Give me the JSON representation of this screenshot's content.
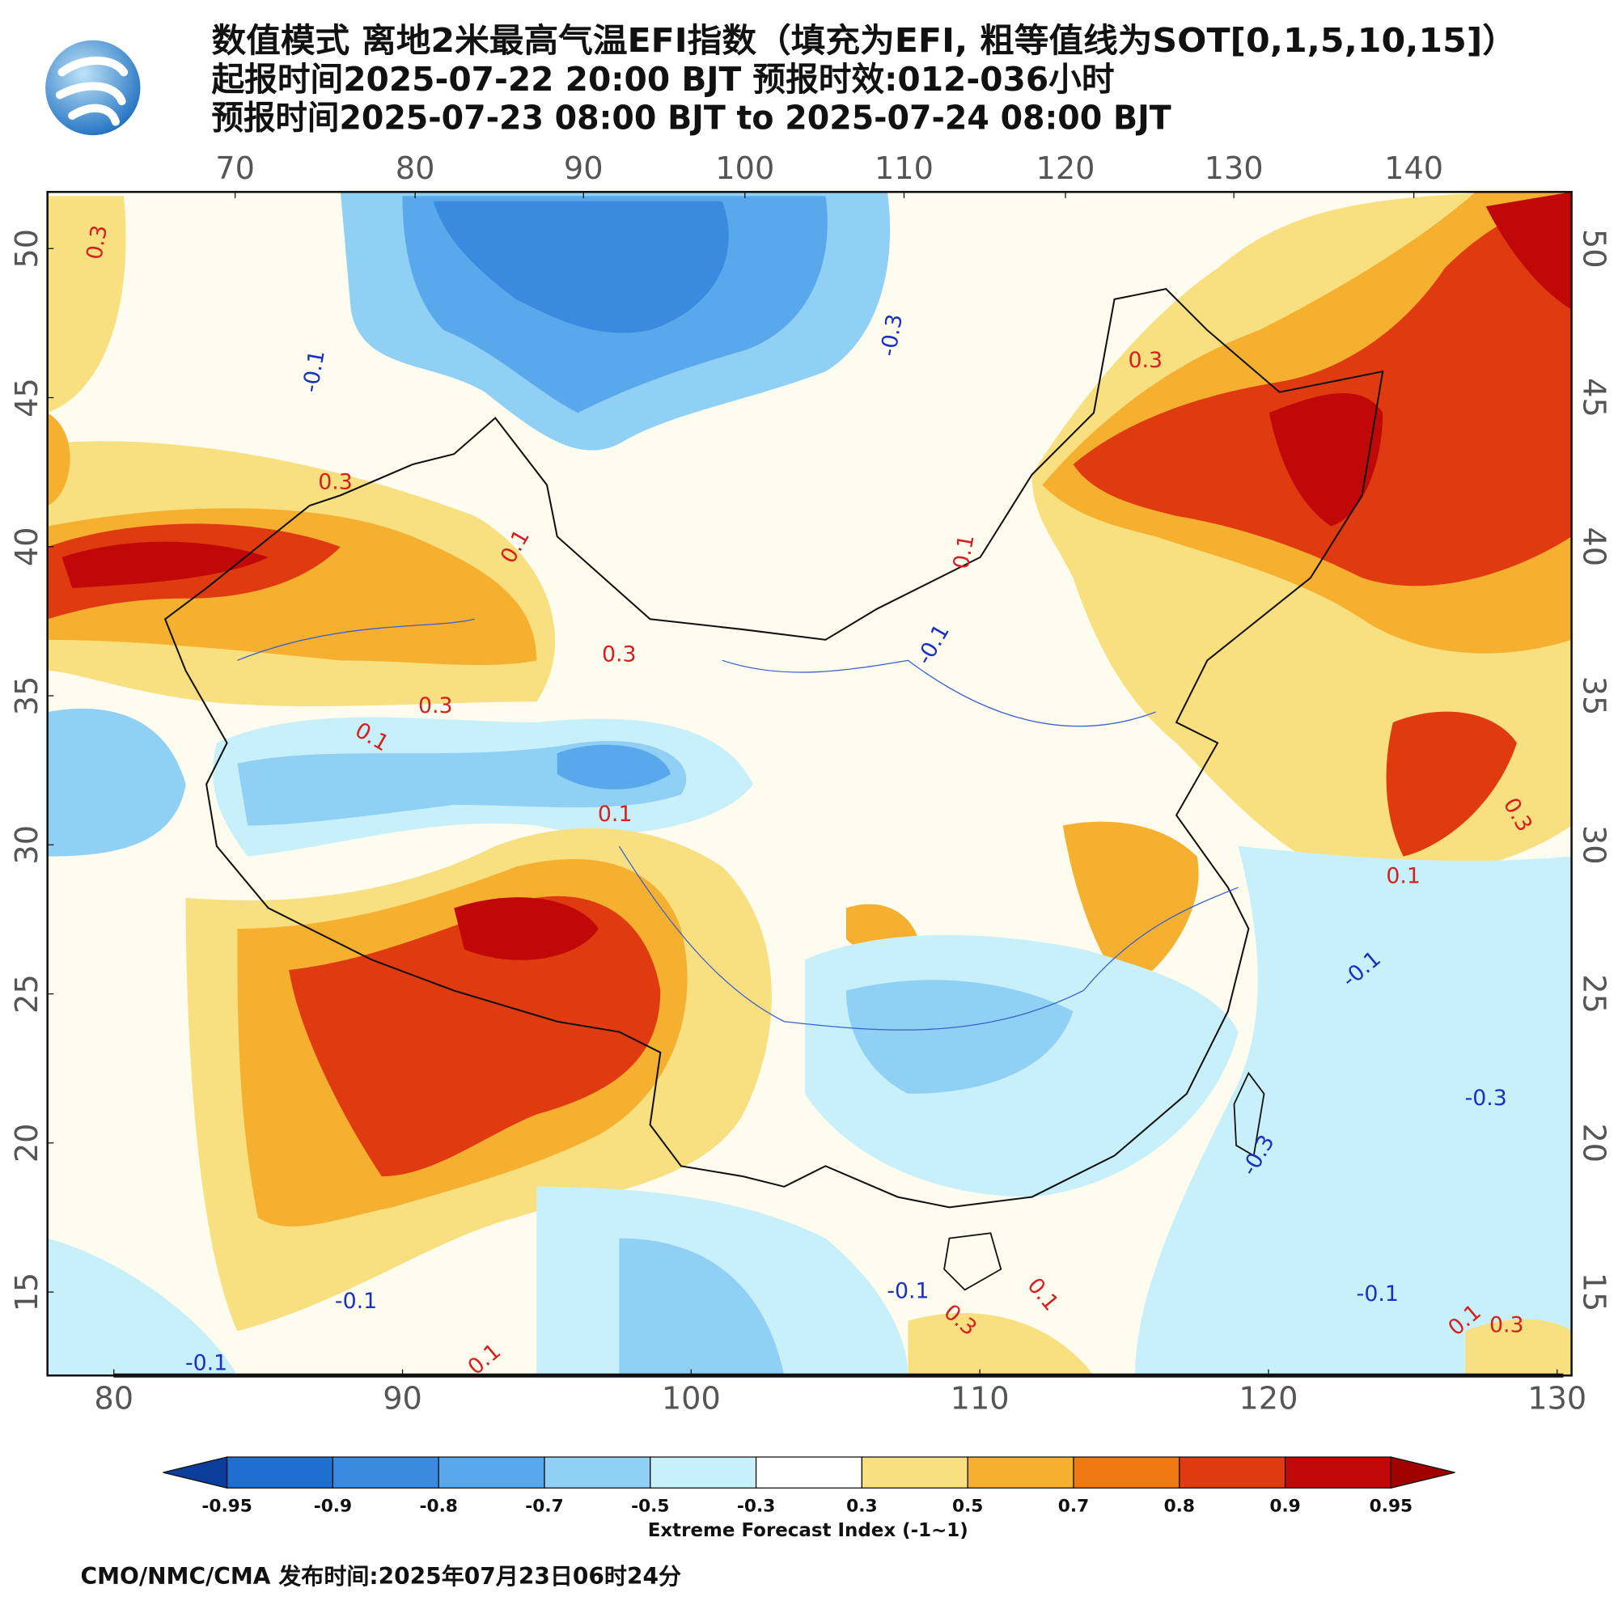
{
  "header": {
    "lines": [
      "数值模式 离地2米最高气温EFI指数（填充为EFI, 粗等值线为SOT[0,1,5,10,15]）",
      "起报时间2025-07-22 20:00 BJT 预报时效:012-036小时",
      "预报时间2025-07-23 08:00 BJT to 2025-07-24 08:00 BJT"
    ]
  },
  "map": {
    "top_lon_ticks": [
      70,
      80,
      90,
      100,
      110,
      120,
      130,
      140
    ],
    "bottom_lon_ticks": [
      80,
      90,
      100,
      110,
      120,
      130
    ],
    "xlim": [
      77.7,
      130.5
    ],
    "lat_ticks": [
      15,
      20,
      25,
      30,
      35,
      40,
      45,
      50
    ],
    "ylim": [
      12.2,
      51.9
    ],
    "contour_labels": [
      0.3,
      -0.1,
      -0.3,
      0.3,
      0.1,
      0.3,
      0.3,
      0.1,
      0.1,
      -0.1,
      0.1,
      -0.1,
      -0.3,
      -0.3,
      -0.1,
      -0.1,
      -0.1,
      0.1,
      -0.1,
      0.3,
      0.1,
      0.3,
      0.1,
      0.3,
      0.1,
      0.3
    ],
    "positive_color": "#d42020",
    "negative_color": "#1a30c0"
  },
  "colorbar": {
    "ticks": [
      -0.95,
      -0.9,
      -0.8,
      -0.7,
      -0.5,
      -0.3,
      0.3,
      0.5,
      0.7,
      0.8,
      0.9,
      0.95
    ],
    "colors": [
      "#0a3d9c",
      "#1f6fd0",
      "#3a8ae0",
      "#5aa8ec",
      "#8fd0f4",
      "#c8f0fa",
      "#ffffff",
      "#f8e080",
      "#f5b030",
      "#f07a10",
      "#e03a10",
      "#c00808",
      "#a00000"
    ],
    "label": "Extreme Forecast Index (-1~1)"
  },
  "footer": "CMO/NMC/CMA 发布时间:2025年07月23日06时24分"
}
